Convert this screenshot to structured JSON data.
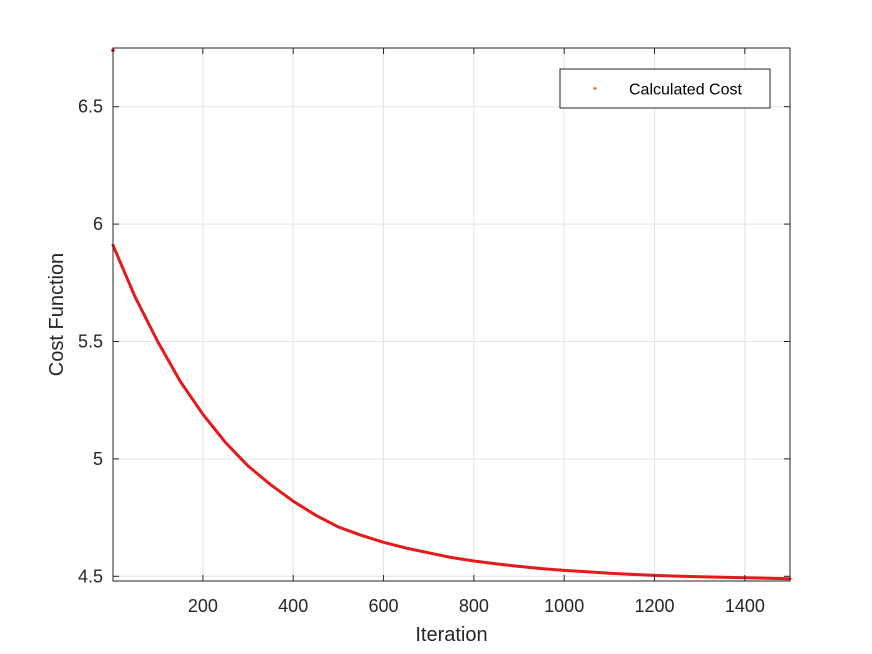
{
  "colors": {
    "background": "#ffffff",
    "axes": "#262626",
    "grid": "#e3e3e3",
    "series_line": "#e41a1c",
    "legend_marker": "#e8761c"
  },
  "chart_data": {
    "type": "line",
    "title": "",
    "xlabel": "Iteration",
    "ylabel": "Cost Function",
    "xlim": [
      1,
      1500
    ],
    "ylim": [
      4.48,
      6.75
    ],
    "xticks": [
      200,
      400,
      600,
      800,
      1000,
      1200,
      1400
    ],
    "xtick_labels": [
      "200",
      "400",
      "600",
      "800",
      "1000",
      "1200",
      "1400"
    ],
    "yticks": [
      4.5,
      5,
      5.5,
      6,
      6.5
    ],
    "ytick_labels": [
      "4.5",
      "5",
      "5.5",
      "6",
      "6.5"
    ],
    "grid": true,
    "legend": {
      "entries": [
        "Calculated Cost"
      ],
      "placement": "top-right",
      "marker": "point"
    },
    "series": [
      {
        "name": "Calculated Cost",
        "line_color": "#e41a1c",
        "x": [
          1,
          50,
          100,
          150,
          200,
          250,
          300,
          350,
          400,
          450,
          500,
          550,
          600,
          650,
          700,
          750,
          800,
          850,
          900,
          950,
          1000,
          1050,
          1100,
          1150,
          1200,
          1250,
          1300,
          1350,
          1400,
          1450,
          1500
        ],
        "y": [
          5.91,
          5.69,
          5.5,
          5.33,
          5.19,
          5.07,
          4.97,
          4.89,
          4.82,
          4.76,
          4.71,
          4.675,
          4.645,
          4.62,
          4.6,
          4.58,
          4.565,
          4.553,
          4.542,
          4.533,
          4.525,
          4.519,
          4.513,
          4.508,
          4.504,
          4.501,
          4.498,
          4.496,
          4.494,
          4.492,
          4.49
        ]
      }
    ],
    "initial_point": {
      "x": 1,
      "y": 6.74
    }
  }
}
